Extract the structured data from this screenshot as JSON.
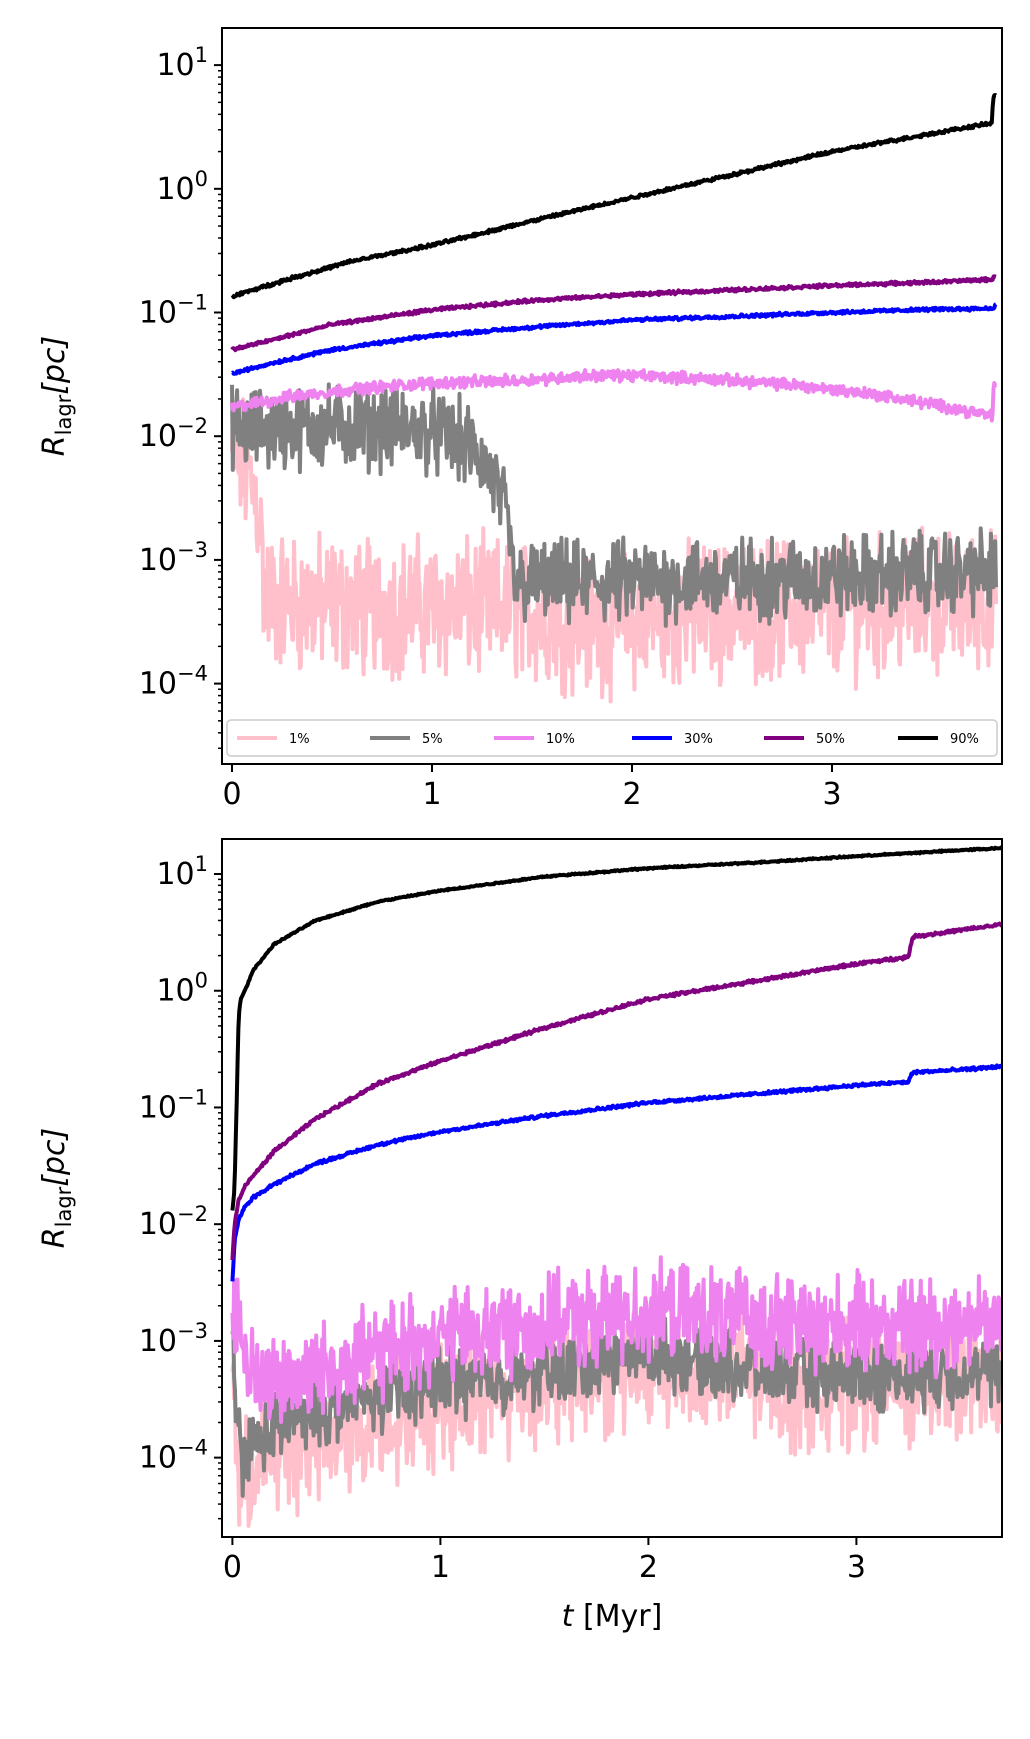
{
  "chart_data": [
    {
      "type": "line",
      "panel": "top",
      "title": "",
      "xlabel": "",
      "ylabel_main": "R",
      "ylabel_sub": "lagr",
      "ylabel_unit": "[pc]",
      "xlim": [
        -0.05,
        3.85
      ],
      "ylim_log10": [
        -4.65,
        1.3
      ],
      "yscale": "log",
      "xticks": [
        0,
        1,
        2,
        3
      ],
      "xtick_labels": [
        "0",
        "1",
        "2",
        "3"
      ],
      "yticks_exp": [
        1,
        0,
        -1,
        -2,
        -3,
        -4
      ],
      "ytick_labels": [
        {
          "base": "10",
          "exp": "1"
        },
        {
          "base": "10",
          "exp": "0"
        },
        {
          "base": "10",
          "exp": "−1"
        },
        {
          "base": "10",
          "exp": "−2"
        },
        {
          "base": "10",
          "exp": "−3"
        },
        {
          "base": "10",
          "exp": "−4"
        }
      ],
      "legend": {
        "placement": "bottom",
        "entries": [
          {
            "label": "1%",
            "color": "#ffc0cb"
          },
          {
            "label": "5%",
            "color": "#808080"
          },
          {
            "label": "10%",
            "color": "#ee82ee"
          },
          {
            "label": "30%",
            "color": "#0000ff"
          },
          {
            "label": "50%",
            "color": "#800080"
          },
          {
            "label": "90%",
            "color": "#000000"
          }
        ]
      },
      "series": [
        {
          "name": "1%",
          "color": "#ffc0cb",
          "noise": 0.42,
          "x": [
            0,
            0.05,
            0.1,
            0.14,
            0.16,
            0.3,
            0.6,
            1.0,
            1.4,
            1.8,
            2.2,
            2.6,
            3.0,
            3.4,
            3.82
          ],
          "y": [
            0.007,
            0.006,
            0.004,
            0.0025,
            0.0005,
            0.00045,
            0.00042,
            0.00042,
            0.0004,
            0.0003,
            0.00035,
            0.0004,
            0.0004,
            0.00045,
            0.00045
          ]
        },
        {
          "name": "5%",
          "color": "#808080",
          "noise": 0.25,
          "x": [
            0,
            0.05,
            0.2,
            0.5,
            0.8,
            1.0,
            1.15,
            1.25,
            1.32,
            1.38,
            1.41,
            1.45,
            1.8,
            2.2,
            2.6,
            3.0,
            3.4,
            3.82
          ],
          "y": [
            0.0125,
            0.011,
            0.0115,
            0.012,
            0.0118,
            0.011,
            0.009,
            0.0065,
            0.004,
            0.002,
            0.00065,
            0.00065,
            0.00065,
            0.00068,
            0.0007,
            0.00072,
            0.00078,
            0.0008
          ]
        },
        {
          "name": "10%",
          "color": "#ee82ee",
          "noise": 0.035,
          "x": [
            0,
            0.3,
            0.6,
            1.0,
            1.4,
            1.8,
            2.0,
            2.4,
            2.8,
            3.2,
            3.6,
            3.8,
            3.81,
            3.82
          ],
          "y": [
            0.017,
            0.021,
            0.024,
            0.027,
            0.028,
            0.031,
            0.031,
            0.029,
            0.026,
            0.022,
            0.017,
            0.0145,
            0.026,
            0.026
          ]
        },
        {
          "name": "30%",
          "color": "#0000ff",
          "noise": 0.01,
          "x": [
            0,
            0.2,
            0.5,
            1.0,
            1.5,
            2.0,
            2.5,
            3.0,
            3.5,
            3.8,
            3.82
          ],
          "y": [
            0.032,
            0.039,
            0.05,
            0.065,
            0.076,
            0.087,
            0.093,
            0.1,
            0.106,
            0.108,
            0.115
          ]
        },
        {
          "name": "50%",
          "color": "#800080",
          "noise": 0.01,
          "x": [
            0,
            0.2,
            0.5,
            1.0,
            1.5,
            2.0,
            2.5,
            3.0,
            3.5,
            3.8,
            3.82
          ],
          "y": [
            0.05,
            0.06,
            0.08,
            0.105,
            0.125,
            0.14,
            0.152,
            0.165,
            0.176,
            0.185,
            0.2
          ]
        },
        {
          "name": "90%",
          "color": "#000000",
          "noise": 0.01,
          "x": [
            0,
            0.3,
            0.6,
            1.0,
            1.5,
            2.0,
            2.5,
            3.0,
            3.5,
            3.8,
            3.805,
            3.82
          ],
          "y": [
            0.135,
            0.19,
            0.26,
            0.35,
            0.55,
            0.85,
            1.3,
            2.0,
            2.8,
            3.4,
            5.5,
            5.7
          ]
        }
      ]
    },
    {
      "type": "line",
      "panel": "bottom",
      "title": "",
      "xlabel_main": "t",
      "xlabel_unit": "[Myr]",
      "ylabel_main": "R",
      "ylabel_sub": "lagr",
      "ylabel_unit": "[pc]",
      "xlim": [
        -0.05,
        3.7
      ],
      "ylim_log10": [
        -4.68,
        1.3
      ],
      "yscale": "log",
      "xticks": [
        0,
        1,
        2,
        3
      ],
      "xtick_labels": [
        "0",
        "1",
        "2",
        "3"
      ],
      "yticks_exp": [
        1,
        0,
        -1,
        -2,
        -3,
        -4
      ],
      "ytick_labels": [
        {
          "base": "10",
          "exp": "1"
        },
        {
          "base": "10",
          "exp": "0"
        },
        {
          "base": "10",
          "exp": "−1"
        },
        {
          "base": "10",
          "exp": "−2"
        },
        {
          "base": "10",
          "exp": "−3"
        },
        {
          "base": "10",
          "exp": "−4"
        }
      ],
      "series": [
        {
          "name": "1%",
          "color": "#ffc0cb",
          "noise": 0.4,
          "x": [
            0,
            0.02,
            0.05,
            0.1,
            0.3,
            0.6,
            1.0,
            1.4,
            2.0,
            2.4,
            2.8,
            3.2,
            3.7
          ],
          "y": [
            0.0008,
            0.0001,
            5e-05,
            8e-05,
            0.00012,
            0.00018,
            0.0003,
            0.0004,
            0.0006,
            0.0005,
            0.0004,
            0.00045,
            0.00045
          ]
        },
        {
          "name": "5%",
          "color": "#808080",
          "noise": 0.22,
          "x": [
            0,
            0.02,
            0.05,
            0.1,
            0.3,
            0.6,
            1.0,
            1.4,
            2.0,
            2.4,
            2.8,
            3.2,
            3.7
          ],
          "y": [
            0.001,
            0.0002,
            0.0001,
            0.00013,
            0.00022,
            0.0003,
            0.00045,
            0.0005,
            0.0008,
            0.0006,
            0.0005,
            0.0005,
            0.00055
          ]
        },
        {
          "name": "10%",
          "color": "#ee82ee",
          "noise": 0.3,
          "x": [
            0,
            0.03,
            0.07,
            0.12,
            0.3,
            0.6,
            1.0,
            1.4,
            2.0,
            2.4,
            2.8,
            3.2,
            3.7
          ],
          "y": [
            0.0018,
            0.0015,
            0.0006,
            0.00045,
            0.0005,
            0.0007,
            0.0011,
            0.0013,
            0.0018,
            0.0016,
            0.0014,
            0.0014,
            0.0015
          ]
        },
        {
          "name": "30%",
          "color": "#0000ff",
          "noise": 0.01,
          "x": [
            0,
            0.01,
            0.03,
            0.06,
            0.1,
            0.2,
            0.4,
            0.7,
            1.0,
            1.5,
            2.0,
            2.5,
            3.0,
            3.25,
            3.27,
            3.5,
            3.7
          ],
          "y": [
            0.0032,
            0.007,
            0.011,
            0.014,
            0.017,
            0.022,
            0.033,
            0.048,
            0.062,
            0.085,
            0.11,
            0.13,
            0.155,
            0.165,
            0.2,
            0.21,
            0.225
          ]
        },
        {
          "name": "50%",
          "color": "#800080",
          "noise": 0.01,
          "x": [
            0,
            0.01,
            0.03,
            0.06,
            0.1,
            0.2,
            0.4,
            0.7,
            1.0,
            1.5,
            2.0,
            2.5,
            3.0,
            3.25,
            3.27,
            3.5,
            3.7
          ],
          "y": [
            0.005,
            0.01,
            0.016,
            0.021,
            0.026,
            0.042,
            0.08,
            0.16,
            0.25,
            0.48,
            0.85,
            1.2,
            1.7,
            1.95,
            2.9,
            3.3,
            3.7
          ]
        },
        {
          "name": "90%",
          "color": "#000000",
          "noise": 0.005,
          "x": [
            0,
            0.01,
            0.02,
            0.03,
            0.04,
            0.06,
            0.1,
            0.2,
            0.4,
            0.7,
            1.0,
            1.5,
            2.0,
            2.5,
            3.0,
            3.5,
            3.7
          ],
          "y": [
            0.013,
            0.02,
            0.1,
            0.6,
            0.85,
            1.0,
            1.5,
            2.5,
            4.0,
            5.8,
            7.2,
            9.5,
            11.2,
            12.5,
            14.2,
            16.0,
            16.7
          ]
        }
      ]
    }
  ]
}
